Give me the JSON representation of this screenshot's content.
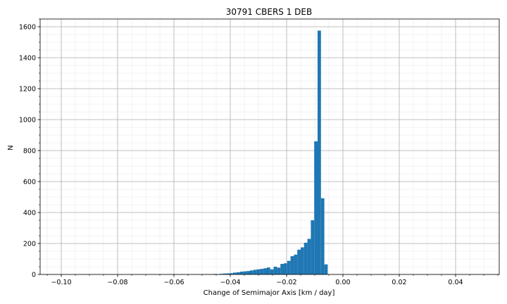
{
  "chart_data": {
    "type": "bar",
    "subtype": "histogram",
    "title": "30791 CBERS 1 DEB",
    "xlabel": "Change of Semimajor Axis [km / day]",
    "ylabel": "N",
    "xlim": [
      -0.1075,
      0.0555
    ],
    "ylim": [
      0,
      1650
    ],
    "grid": true,
    "minor_grid": true,
    "bin_width": 0.0012,
    "bar_color": "#1f77b4",
    "x_ticks": [
      -0.1,
      -0.08,
      -0.06,
      -0.04,
      -0.02,
      0.0,
      0.02,
      0.04
    ],
    "x_tick_labels": [
      "−0.10",
      "−0.08",
      "−0.06",
      "−0.04",
      "−0.02",
      "0.00",
      "0.02",
      "0.04"
    ],
    "y_ticks": [
      0,
      200,
      400,
      600,
      800,
      1000,
      1200,
      1400,
      1600
    ],
    "y_tick_labels": [
      "0",
      "200",
      "400",
      "600",
      "800",
      "1000",
      "1200",
      "1400",
      "1600"
    ],
    "bins": [
      {
        "x_start": -0.0486,
        "count": 2
      },
      {
        "x_start": -0.0474,
        "count": 1
      },
      {
        "x_start": -0.0462,
        "count": 3
      },
      {
        "x_start": -0.045,
        "count": 2
      },
      {
        "x_start": -0.0438,
        "count": 4
      },
      {
        "x_start": -0.0426,
        "count": 6
      },
      {
        "x_start": -0.0414,
        "count": 7
      },
      {
        "x_start": -0.0402,
        "count": 8
      },
      {
        "x_start": -0.039,
        "count": 12
      },
      {
        "x_start": -0.0378,
        "count": 14
      },
      {
        "x_start": -0.0366,
        "count": 18
      },
      {
        "x_start": -0.0354,
        "count": 20
      },
      {
        "x_start": -0.0342,
        "count": 22
      },
      {
        "x_start": -0.033,
        "count": 26
      },
      {
        "x_start": -0.0318,
        "count": 30
      },
      {
        "x_start": -0.0306,
        "count": 33
      },
      {
        "x_start": -0.0294,
        "count": 36
      },
      {
        "x_start": -0.0282,
        "count": 40
      },
      {
        "x_start": -0.027,
        "count": 45
      },
      {
        "x_start": -0.0258,
        "count": 33
      },
      {
        "x_start": -0.0246,
        "count": 50
      },
      {
        "x_start": -0.0234,
        "count": 44
      },
      {
        "x_start": -0.0222,
        "count": 68
      },
      {
        "x_start": -0.021,
        "count": 72
      },
      {
        "x_start": -0.0198,
        "count": 88
      },
      {
        "x_start": -0.0186,
        "count": 118
      },
      {
        "x_start": -0.0174,
        "count": 128
      },
      {
        "x_start": -0.0162,
        "count": 160
      },
      {
        "x_start": -0.015,
        "count": 175
      },
      {
        "x_start": -0.0138,
        "count": 205
      },
      {
        "x_start": -0.0126,
        "count": 230
      },
      {
        "x_start": -0.0114,
        "count": 350
      },
      {
        "x_start": -0.0102,
        "count": 860
      },
      {
        "x_start": -0.009,
        "count": 1575
      },
      {
        "x_start": -0.0078,
        "count": 492
      },
      {
        "x_start": -0.0066,
        "count": 65
      }
    ]
  }
}
